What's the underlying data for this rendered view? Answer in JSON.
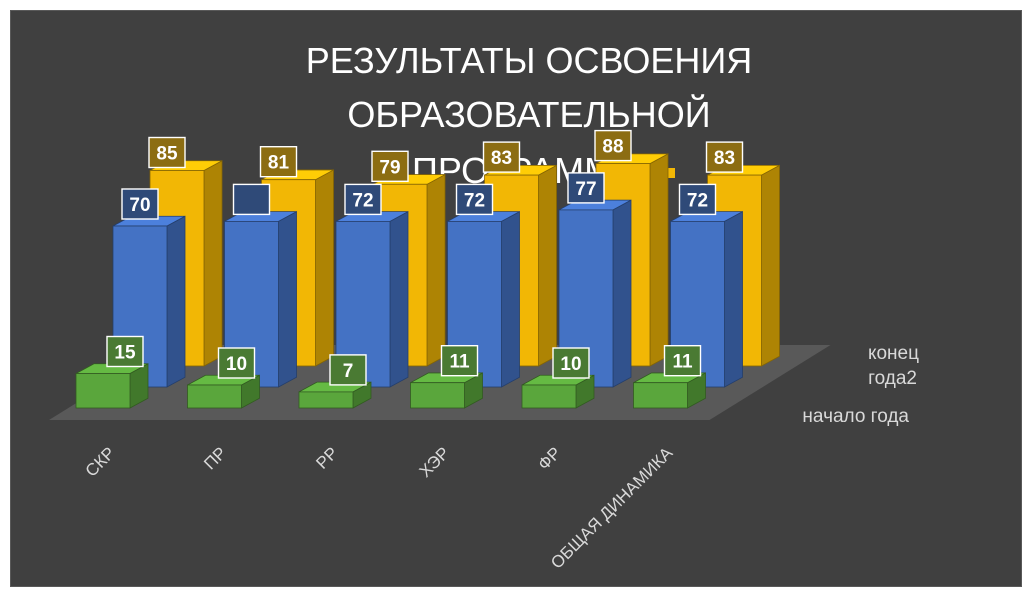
{
  "chart_data": {
    "type": "bar",
    "title": "РЕЗУЛЬТАТЫ ОСВОЕНИЯ ОБРАЗОВАТЕЛЬНОЙ ПРОГРАММЫ",
    "title_lines": [
      "РЕЗУЛЬТАТЫ ОСВОЕНИЯ",
      "ОБРАЗОВАТЕЛЬНОЙ",
      "ПРОГРАММЫ"
    ],
    "categories": [
      "СКР",
      "ПР",
      "РР",
      "ХЭР",
      "ФР",
      "ОБЩАЯ ДИНАМИКА"
    ],
    "series": [
      {
        "name": "начало года",
        "values": [
          15,
          10,
          7,
          11,
          10,
          11
        ],
        "labels": [
          "15",
          "10",
          "7",
          "11",
          "10",
          "11"
        ],
        "color": "#5aa63c"
      },
      {
        "name": "",
        "values": [
          70,
          72,
          72,
          72,
          77,
          72
        ],
        "labels": [
          "70",
          "",
          "72",
          "72",
          "77",
          "72"
        ],
        "color": "#4472c4"
      },
      {
        "name": "конец года2",
        "values": [
          85,
          81,
          79,
          83,
          88,
          83
        ],
        "labels": [
          "85",
          "81",
          "79",
          "83",
          "88",
          "83"
        ],
        "color": "#f2b705"
      }
    ],
    "depth_labels": [
      "конец",
      "года2",
      "начало года"
    ],
    "background": "#404040",
    "legend": "top-center",
    "grid": false
  }
}
